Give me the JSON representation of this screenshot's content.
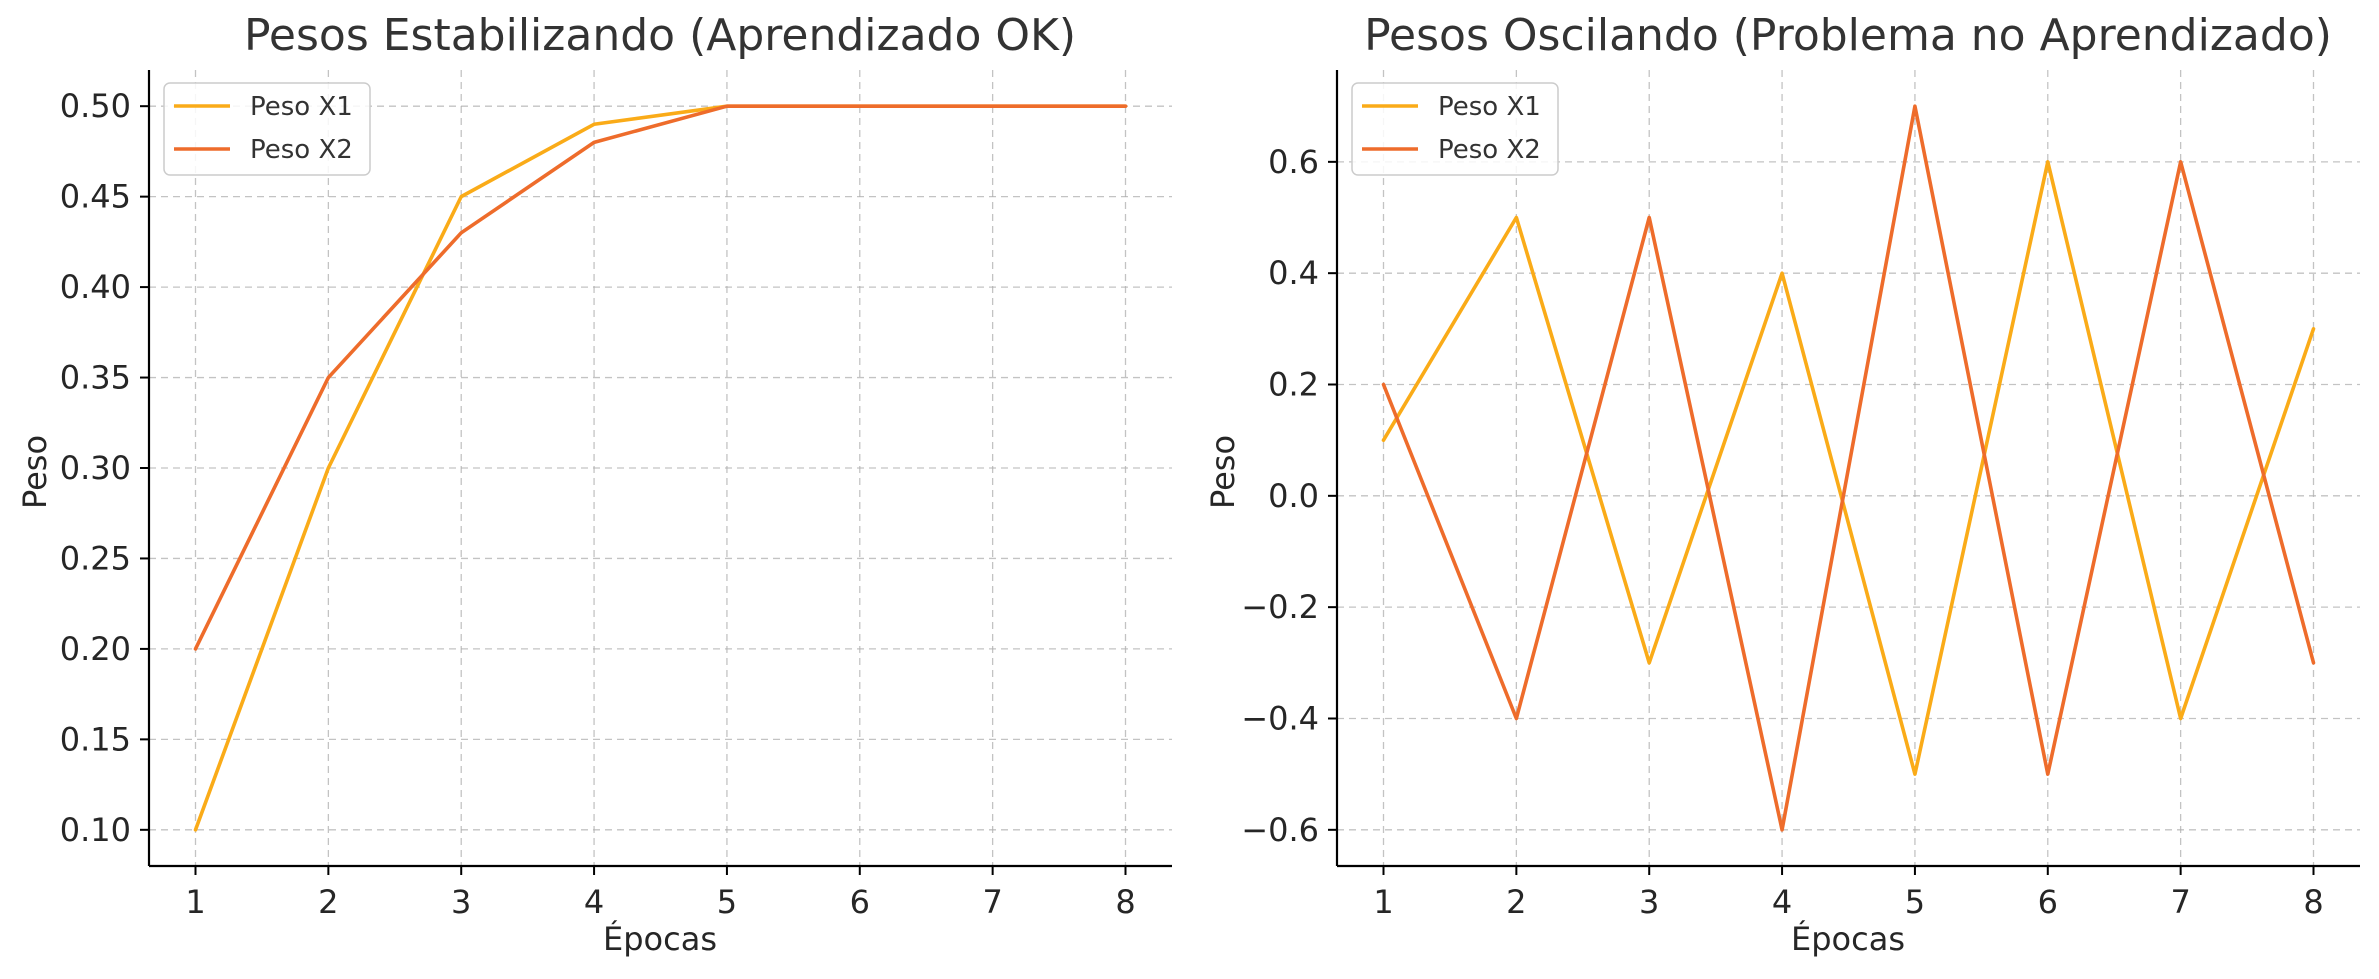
{
  "colors": {
    "series_1": "#FAAB18",
    "series_2": "#EE6C2B"
  },
  "chart_data": [
    {
      "type": "line",
      "title": "Pesos Estabilizando (Aprendizado OK)",
      "xlabel": "Épocas",
      "ylabel": "Peso",
      "x": [
        1,
        2,
        3,
        4,
        5,
        6,
        7,
        8
      ],
      "xticks": [
        "1",
        "2",
        "3",
        "4",
        "5",
        "6",
        "7",
        "8"
      ],
      "xlim": [
        0.65,
        8.35
      ],
      "ylim": [
        0.08,
        0.52
      ],
      "yticks": [
        "0.10",
        "0.15",
        "0.20",
        "0.25",
        "0.30",
        "0.35",
        "0.40",
        "0.45",
        "0.50"
      ],
      "grid": true,
      "legend_position": "top-left",
      "series": [
        {
          "name": "Peso X1",
          "values": [
            0.1,
            0.3,
            0.45,
            0.49,
            0.5,
            0.5,
            0.5,
            0.5
          ]
        },
        {
          "name": "Peso X2",
          "values": [
            0.2,
            0.35,
            0.43,
            0.48,
            0.5,
            0.5,
            0.5,
            0.5
          ]
        }
      ]
    },
    {
      "type": "line",
      "title": "Pesos Oscilando (Problema no Aprendizado)",
      "xlabel": "Épocas",
      "ylabel": "Peso",
      "x": [
        1,
        2,
        3,
        4,
        5,
        6,
        7,
        8
      ],
      "xticks": [
        "1",
        "2",
        "3",
        "4",
        "5",
        "6",
        "7",
        "8"
      ],
      "xlim": [
        0.65,
        8.35
      ],
      "ylim": [
        -0.665,
        0.765
      ],
      "yticks": [
        "−0.6",
        "−0.4",
        "−0.2",
        "0.0",
        "0.2",
        "0.4",
        "0.6"
      ],
      "grid": true,
      "legend_position": "top-left",
      "series": [
        {
          "name": "Peso X1",
          "values": [
            0.1,
            0.5,
            -0.3,
            0.4,
            -0.5,
            0.6,
            -0.4,
            0.3
          ]
        },
        {
          "name": "Peso X2",
          "values": [
            0.2,
            -0.4,
            0.5,
            -0.6,
            0.7,
            -0.5,
            0.6,
            -0.3
          ]
        }
      ]
    }
  ]
}
